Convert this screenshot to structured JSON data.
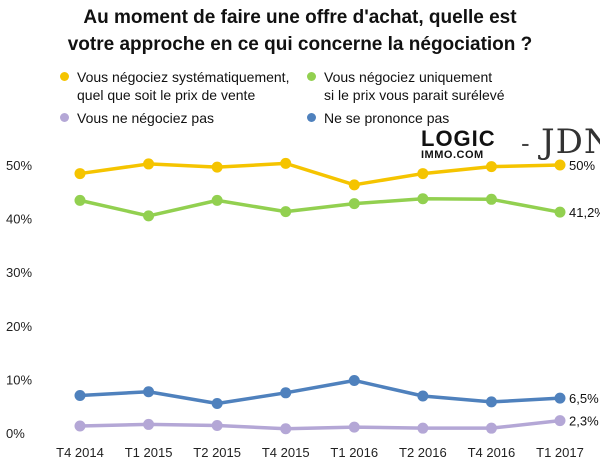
{
  "title_lines": [
    "Au moment de faire une offre d'achat, quelle est",
    "votre approche en ce qui concerne la négociation ?"
  ],
  "logo": {
    "logic": "LOGIC",
    "immo": "IMMO.COM",
    "separator": "-",
    "jdn": "JDN"
  },
  "chart_data": {
    "type": "line",
    "title": "Au moment de faire une offre d'achat, quelle est votre approche en ce qui concerne la négociation ?",
    "categories": [
      "T4 2014",
      "T1 2015",
      "T2 2015",
      "T4 2015",
      "T1 2016",
      "T2 2016",
      "T4 2016",
      "T1 2017"
    ],
    "yticks": [
      "0%",
      "10%",
      "20%",
      "30%",
      "40%",
      "50%"
    ],
    "ylim": [
      0,
      55
    ],
    "grid": false,
    "legend_position": "top",
    "series": [
      {
        "name_lines": [
          "Vous négociez systématiquement,",
          "quel que soit le prix de vente"
        ],
        "color": "#f5c400",
        "values": [
          48.4,
          50.2,
          49.6,
          50.3,
          46.3,
          48.4,
          49.7,
          50
        ],
        "end_label": "50%"
      },
      {
        "name_lines": [
          "Vous négociez uniquement",
          "si le prix vous parait surélevé"
        ],
        "color": "#92d050",
        "values": [
          43.4,
          40.5,
          43.4,
          41.3,
          42.8,
          43.7,
          43.6,
          41.2
        ],
        "end_label": "41,2%"
      },
      {
        "name_lines": [
          "Vous ne négociez pas"
        ],
        "color": "#b4a7d6",
        "values": [
          1.3,
          1.6,
          1.4,
          0.8,
          1.1,
          0.9,
          0.9,
          2.3
        ],
        "end_label": "2,3%"
      },
      {
        "name_lines": [
          "Ne se prononce pas"
        ],
        "color": "#4f81bd",
        "values": [
          7.0,
          7.7,
          5.5,
          7.5,
          9.8,
          6.9,
          5.8,
          6.5
        ],
        "end_label": "6,5%"
      }
    ]
  }
}
